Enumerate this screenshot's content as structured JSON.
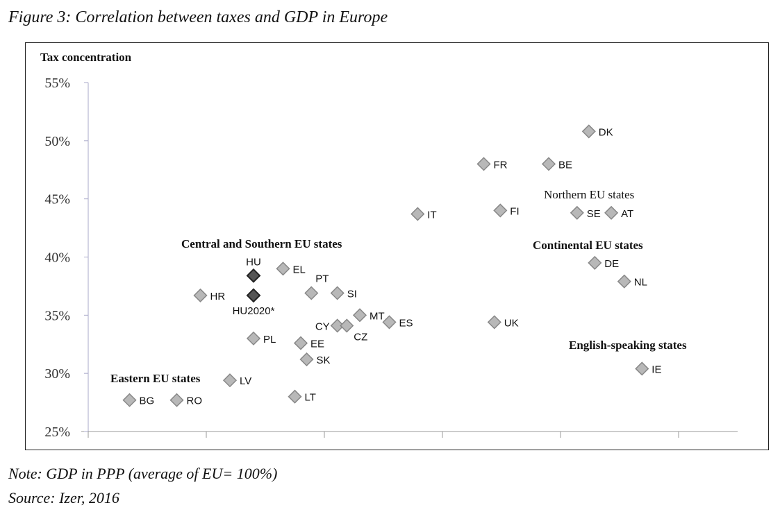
{
  "title": "Figure 3: Correlation between taxes and GDP in Europe",
  "note": "Note: GDP in PPP (average of EU= 100%)",
  "source": "Source: Izer, 2016",
  "chart_data": {
    "type": "scatter",
    "title": "Figure 3: Correlation between taxes and GDP in Europe",
    "ylabel": "Tax concentration",
    "xlabel": "",
    "ylim": [
      25,
      55
    ],
    "yticks": [
      "25%",
      "30%",
      "35%",
      "40%",
      "45%",
      "50%",
      "55%"
    ],
    "xlim": [
      0,
      5.5
    ],
    "xticks_unlabeled": [
      0,
      1,
      2,
      3,
      4,
      5
    ],
    "x_units": "relative GDP in PPP (axis unlabeled)",
    "grid": false,
    "colors": {
      "point": "#b8b8b8",
      "highlight": "#555555",
      "axis": "#a9a9c9"
    },
    "points": [
      {
        "label": "DK",
        "x": 4.24,
        "y": 50.8
      },
      {
        "label": "FR",
        "x": 3.35,
        "y": 48.0
      },
      {
        "label": "BE",
        "x": 3.9,
        "y": 48.0
      },
      {
        "label": "IT",
        "x": 2.79,
        "y": 43.7
      },
      {
        "label": "FI",
        "x": 3.49,
        "y": 44.0
      },
      {
        "label": "SE",
        "x": 4.14,
        "y": 43.8
      },
      {
        "label": "AT",
        "x": 4.43,
        "y": 43.8
      },
      {
        "label": "DE",
        "x": 4.29,
        "y": 39.5
      },
      {
        "label": "NL",
        "x": 4.54,
        "y": 37.9
      },
      {
        "label": "UK",
        "x": 3.44,
        "y": 34.4
      },
      {
        "label": "IE",
        "x": 4.69,
        "y": 30.4
      },
      {
        "label": "HU",
        "x": 1.4,
        "y": 38.4,
        "highlight": true,
        "pos": "above"
      },
      {
        "label": "HU2020*",
        "x": 1.4,
        "y": 36.7,
        "highlight": true,
        "pos": "below"
      },
      {
        "label": "HR",
        "x": 0.95,
        "y": 36.7
      },
      {
        "label": "EL",
        "x": 1.65,
        "y": 39.0
      },
      {
        "label": "PT",
        "x": 1.89,
        "y": 36.9,
        "pos": "aboveright"
      },
      {
        "label": "SI",
        "x": 2.11,
        "y": 36.9
      },
      {
        "label": "MT",
        "x": 2.3,
        "y": 35.0
      },
      {
        "label": "ES",
        "x": 2.55,
        "y": 34.4
      },
      {
        "label": "CY",
        "x": 2.11,
        "y": 34.1,
        "pos": "left"
      },
      {
        "label": "CZ",
        "x": 2.19,
        "y": 34.1,
        "pos": "belowright"
      },
      {
        "label": "PL",
        "x": 1.4,
        "y": 33.0
      },
      {
        "label": "EE",
        "x": 1.8,
        "y": 32.6
      },
      {
        "label": "SK",
        "x": 1.85,
        "y": 31.2
      },
      {
        "label": "LT",
        "x": 1.75,
        "y": 28.0
      },
      {
        "label": "LV",
        "x": 1.2,
        "y": 29.4
      },
      {
        "label": "BG",
        "x": 0.35,
        "y": 27.7
      },
      {
        "label": "RO",
        "x": 0.75,
        "y": 27.7
      }
    ],
    "annotations": [
      {
        "text": "Northern EU states",
        "bold": false
      },
      {
        "text": "Continental EU states",
        "bold": true
      },
      {
        "text": "Central and Southern EU states",
        "bold": true
      },
      {
        "text": "English-speaking states",
        "bold": true
      },
      {
        "text": "Eastern EU states",
        "bold": true
      }
    ]
  }
}
